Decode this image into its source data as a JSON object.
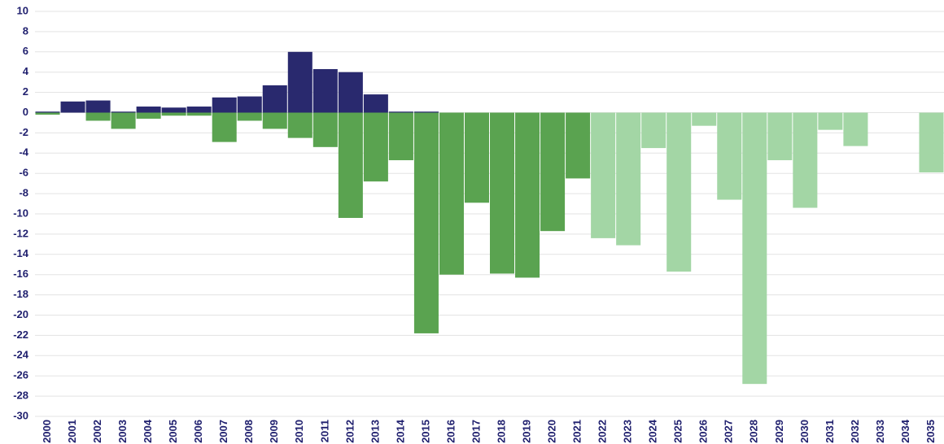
{
  "chart_data": {
    "type": "bar",
    "categories": [
      "2000",
      "2001",
      "2002",
      "2003",
      "2004",
      "2005",
      "2006",
      "2007",
      "2008",
      "2009",
      "2010",
      "2011",
      "2012",
      "2013",
      "2014",
      "2015",
      "2016",
      "2017",
      "2018",
      "2019",
      "2020",
      "2021",
      "2022",
      "2023",
      "2024",
      "2025",
      "2026",
      "2027",
      "2028",
      "2029",
      "2030",
      "2031",
      "2032",
      "2033",
      "2034",
      "2035"
    ],
    "series": [
      {
        "color": "#29296e",
        "values": [
          0.1,
          1.1,
          1.2,
          0.1,
          0.6,
          0.5,
          0.6,
          1.5,
          1.6,
          2.7,
          6.0,
          4.3,
          4.0,
          1.8,
          0.1,
          0.1,
          null,
          null,
          null,
          null,
          null,
          null,
          null,
          null,
          null,
          null,
          null,
          null,
          null,
          null,
          null,
          null,
          null,
          null,
          null,
          null
        ]
      },
      {
        "color": "#5aa350",
        "values": [
          -0.2,
          0,
          -0.8,
          -1.6,
          -0.6,
          -0.3,
          -0.3,
          -2.9,
          -0.8,
          -1.6,
          -2.5,
          -3.4,
          -10.4,
          -6.8,
          -4.7,
          -21.8,
          -16.0,
          -8.9,
          -15.9,
          -16.3,
          -11.7,
          -6.5,
          null,
          null,
          null,
          null,
          null,
          null,
          null,
          null,
          null,
          null,
          null,
          null,
          null,
          null
        ]
      },
      {
        "color": "#a3d6a5",
        "values": [
          null,
          null,
          null,
          null,
          null,
          null,
          null,
          null,
          null,
          null,
          null,
          null,
          null,
          null,
          null,
          null,
          null,
          null,
          null,
          null,
          null,
          null,
          -12.4,
          -13.1,
          -3.5,
          -15.7,
          -1.3,
          -8.6,
          -26.8,
          -4.7,
          -9.4,
          -1.7,
          -3.3,
          0,
          0,
          -5.9
        ]
      }
    ],
    "ylim": [
      -30,
      10
    ],
    "yticks": [
      -30,
      -28,
      -26,
      -24,
      -22,
      -20,
      -18,
      -16,
      -14,
      -12,
      -10,
      -8,
      -6,
      -4,
      -2,
      0,
      2,
      4,
      6,
      8,
      10
    ],
    "grid": true
  }
}
